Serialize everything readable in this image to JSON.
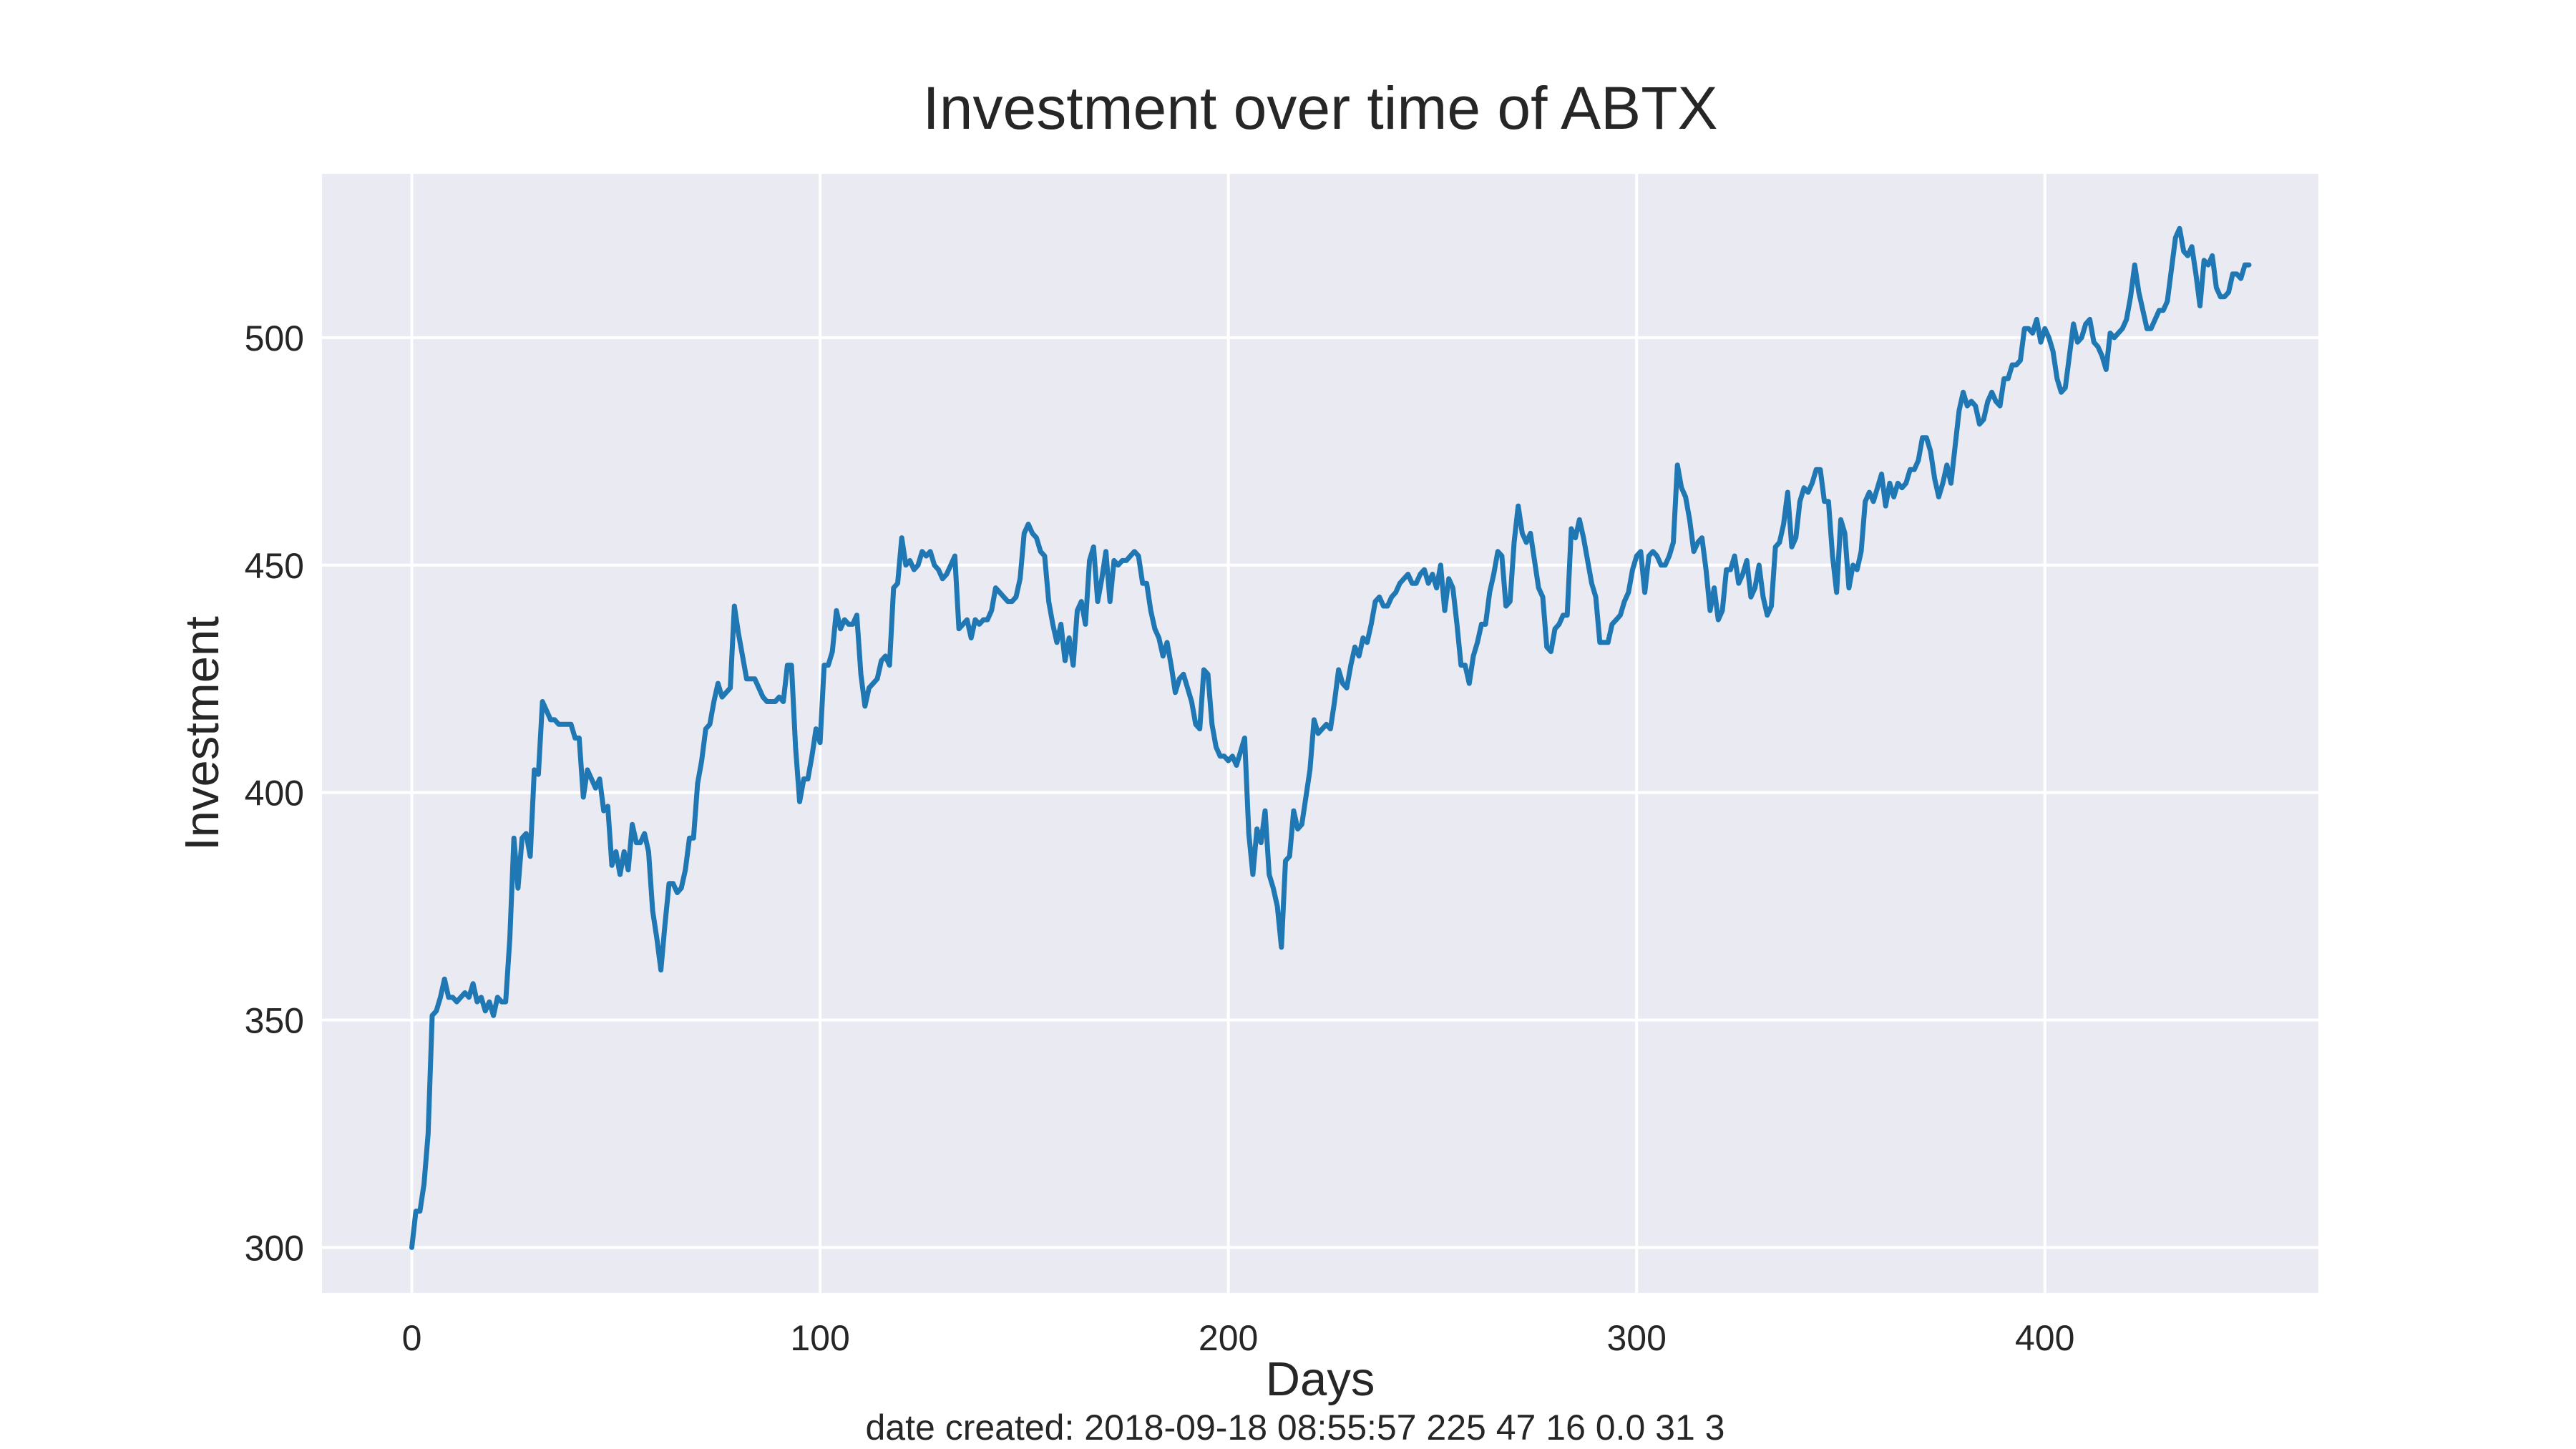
{
  "footer": {
    "text": "date created: 2018-09-18 08:55:57 225 47 16 0.0 31 3"
  },
  "colors": {
    "line": "#1f77b4",
    "plot_background": "#eaeaf2",
    "grid": "#ffffff",
    "text": "#262626"
  },
  "chart_data": {
    "type": "line",
    "title": "Investment over time of ABTX",
    "xlabel": "Days",
    "ylabel": "Investment",
    "xlim": [
      -22,
      467
    ],
    "ylim": [
      290,
      536
    ],
    "grid": true,
    "x_ticks": [
      0,
      100,
      200,
      300,
      400
    ],
    "y_ticks": [
      300,
      350,
      400,
      450,
      500
    ],
    "series": [
      {
        "color": "#1f77b4",
        "values": [
          300,
          308,
          308,
          314,
          325,
          351,
          352,
          355,
          359,
          355,
          355,
          354,
          355,
          356,
          355,
          358,
          354,
          355,
          352,
          354,
          351,
          355,
          354,
          354,
          368,
          390,
          379,
          390,
          391,
          386,
          405,
          404,
          420,
          418,
          416,
          416,
          415,
          415,
          415,
          415,
          412,
          412,
          399,
          405,
          403,
          401,
          403,
          396,
          397,
          384,
          387,
          382,
          387,
          383,
          393,
          389,
          389,
          391,
          387,
          374,
          368,
          361,
          371,
          380,
          380,
          378,
          379,
          383,
          390,
          390,
          402,
          407,
          414,
          415,
          420,
          424,
          421,
          422,
          423,
          441,
          435,
          430,
          425,
          425,
          425,
          423,
          421,
          420,
          420,
          420,
          421,
          420,
          428,
          428,
          410,
          398,
          403,
          403,
          408,
          414,
          411,
          428,
          428,
          431,
          440,
          436,
          438,
          437,
          437,
          439,
          426,
          419,
          423,
          424,
          425,
          429,
          430,
          428,
          445,
          446,
          456,
          450,
          451,
          449,
          450,
          453,
          452,
          453,
          450,
          449,
          447,
          448,
          450,
          452,
          436,
          437,
          438,
          434,
          438,
          437,
          438,
          438,
          440,
          445,
          444,
          443,
          442,
          442,
          443,
          447,
          457,
          459,
          457,
          456,
          453,
          452,
          442,
          437,
          433,
          437,
          429,
          434,
          428,
          440,
          442,
          437,
          451,
          454,
          442,
          447,
          453,
          442,
          451,
          450,
          451,
          451,
          452,
          453,
          452,
          446,
          446,
          440,
          436,
          434,
          430,
          433,
          428,
          422,
          425,
          426,
          423,
          420,
          415,
          414,
          427,
          426,
          415,
          410,
          408,
          408,
          407,
          408,
          406,
          409,
          412,
          391,
          382,
          392,
          389,
          396,
          382,
          379,
          375,
          366,
          385,
          386,
          396,
          392,
          393,
          399,
          405,
          416,
          413,
          414,
          415,
          414,
          420,
          427,
          424,
          423,
          428,
          432,
          430,
          434,
          433,
          437,
          442,
          443,
          441,
          441,
          443,
          444,
          446,
          447,
          448,
          446,
          446,
          448,
          449,
          446,
          448,
          445,
          450,
          440,
          447,
          445,
          437,
          428,
          428,
          424,
          430,
          433,
          437,
          437,
          444,
          448,
          453,
          452,
          441,
          442,
          455,
          463,
          457,
          455,
          457,
          451,
          445,
          443,
          432,
          431,
          436,
          437,
          439,
          439,
          458,
          456,
          460,
          456,
          451,
          446,
          443,
          433,
          433,
          433,
          437,
          438,
          439,
          442,
          444,
          449,
          452,
          453,
          444,
          452,
          453,
          452,
          450,
          450,
          452,
          455,
          472,
          467,
          465,
          460,
          453,
          455,
          456,
          449,
          440,
          445,
          438,
          440,
          449,
          449,
          452,
          446,
          448,
          451,
          443,
          445,
          450,
          443,
          439,
          441,
          454,
          455,
          459,
          466,
          454,
          456,
          464,
          467,
          466,
          468,
          471,
          471,
          464,
          464,
          452,
          444,
          460,
          457,
          445,
          450,
          449,
          453,
          464,
          466,
          464,
          467,
          470,
          463,
          468,
          465,
          468,
          467,
          468,
          471,
          471,
          473,
          478,
          478,
          475,
          469,
          465,
          468,
          472,
          468,
          476,
          484,
          488,
          485,
          486,
          485,
          481,
          482,
          486,
          488,
          486,
          485,
          491,
          491,
          494,
          494,
          495,
          502,
          502,
          501,
          504,
          499,
          502,
          500,
          497,
          491,
          488,
          489,
          496,
          503,
          499,
          500,
          503,
          504,
          499,
          498,
          496,
          493,
          501,
          500,
          501,
          502,
          504,
          509,
          516,
          510,
          506,
          502,
          502,
          504,
          506,
          506,
          508,
          515,
          522,
          524,
          519,
          518,
          520,
          514,
          507,
          517,
          516,
          518,
          511,
          509,
          509,
          510,
          514,
          514,
          513,
          516,
          516
        ]
      }
    ]
  }
}
